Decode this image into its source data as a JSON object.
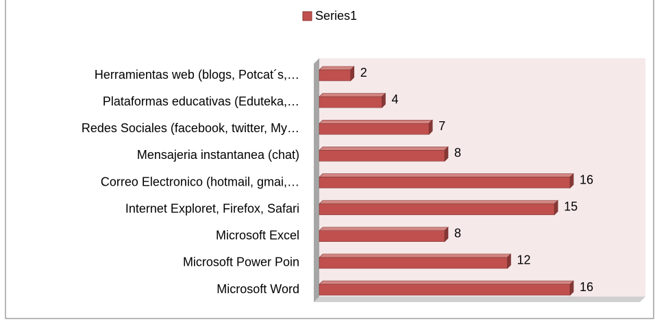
{
  "chart_data": {
    "type": "bar3d_horizontal",
    "categories": [
      "Microsoft Word",
      "Microsoft Power Poin",
      "Microsoft Excel",
      "Internet Exploret, Firefox, Safari",
      "Correo Electronico (hotmail, gmai,…",
      "Mensajeria instantanea (chat)",
      "Redes Sociales (facebook, twitter, My…",
      "Plataformas educativas (Eduteka,…",
      "Herramientas web (blogs, Potcat´s,…"
    ],
    "series": [
      {
        "name": "Series1",
        "color": "#c0504d",
        "values": [
          16,
          12,
          8,
          15,
          16,
          8,
          7,
          4,
          2
        ]
      }
    ],
    "legend": "top"
  }
}
